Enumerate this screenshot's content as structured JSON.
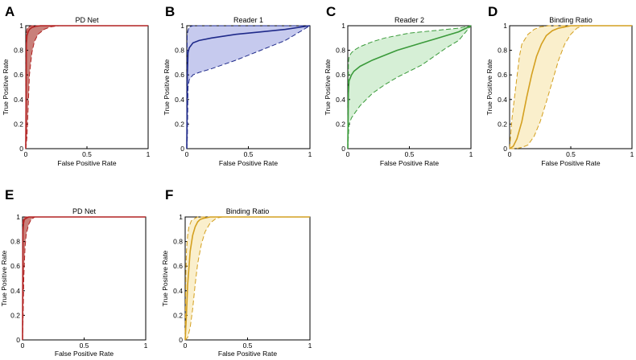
{
  "chart_data": [
    {
      "panel": "A",
      "title": "PD Net",
      "type": "line",
      "xlabel": "False Positive Rate",
      "ylabel": "True Positive Rate",
      "xlim": [
        0,
        1
      ],
      "ylim": [
        0,
        1
      ],
      "xticks": [
        "0",
        "0.5",
        "1"
      ],
      "yticks": [
        "0",
        "0.2",
        "0.4",
        "0.6",
        "0.8",
        "1"
      ],
      "color": "#b22222",
      "fill": "#c9807a",
      "series": [
        {
          "x": [
            0,
            0.005,
            0.01,
            0.02,
            0.03,
            0.05,
            0.08,
            0.12,
            0.2,
            1
          ],
          "y": [
            0,
            0.85,
            0.92,
            0.95,
            0.97,
            0.985,
            0.995,
            1,
            1,
            1
          ]
        },
        {
          "x": [
            0,
            0.003,
            0.01,
            0.02,
            0.05,
            0.1,
            1
          ],
          "y": [
            0,
            0.92,
            0.97,
            0.99,
            1,
            1,
            1
          ]
        },
        {
          "x": [
            0,
            0.01,
            0.02,
            0.03,
            0.05,
            0.07,
            0.1,
            0.15,
            0.2,
            0.27,
            1
          ],
          "y": [
            0,
            0.1,
            0.35,
            0.6,
            0.78,
            0.87,
            0.93,
            0.97,
            0.99,
            1,
            1
          ]
        }
      ]
    },
    {
      "panel": "B",
      "title": "Reader 1",
      "type": "line",
      "xlabel": "False Positive Rate",
      "ylabel": "True Positive Rate",
      "xlim": [
        0,
        1
      ],
      "ylim": [
        0,
        1
      ],
      "xticks": [
        "0",
        "0.5",
        "1"
      ],
      "yticks": [
        "0",
        "0.2",
        "0.4",
        "0.6",
        "0.8",
        "1"
      ],
      "color": "#1f2a8a",
      "fill": "#c6caee",
      "series": [
        {
          "x": [
            0,
            0.005,
            0.01,
            0.02,
            0.05,
            0.1,
            0.2,
            0.4,
            0.6,
            0.8,
            1
          ],
          "y": [
            0,
            0.6,
            0.78,
            0.82,
            0.86,
            0.88,
            0.9,
            0.93,
            0.95,
            0.97,
            1
          ]
        },
        {
          "x": [
            0,
            0.003,
            0.01,
            0.02,
            0.05,
            1
          ],
          "y": [
            0,
            0.93,
            0.96,
            0.99,
            1,
            1
          ]
        },
        {
          "x": [
            0,
            0.005,
            0.01,
            0.02,
            0.05,
            0.1,
            0.2,
            0.4,
            0.6,
            0.8,
            1
          ],
          "y": [
            0,
            0.1,
            0.5,
            0.56,
            0.6,
            0.62,
            0.65,
            0.72,
            0.8,
            0.88,
            1
          ]
        }
      ]
    },
    {
      "panel": "C",
      "title": "Reader 2",
      "type": "line",
      "xlabel": "False Positive Rate",
      "ylabel": "True Positive Rate",
      "xlim": [
        0,
        1
      ],
      "ylim": [
        0,
        1
      ],
      "xticks": [
        "0",
        "0.5",
        "1"
      ],
      "yticks": [
        "0",
        "0.2",
        "0.4",
        "0.6",
        "0.8",
        "1"
      ],
      "color": "#3a9a3a",
      "fill": "#d6efd6",
      "series": [
        {
          "x": [
            0,
            0.005,
            0.01,
            0.03,
            0.05,
            0.1,
            0.2,
            0.3,
            0.4,
            0.5,
            0.6,
            0.7,
            0.8,
            0.9,
            1
          ],
          "y": [
            0,
            0.45,
            0.55,
            0.6,
            0.63,
            0.67,
            0.72,
            0.76,
            0.8,
            0.83,
            0.86,
            0.89,
            0.92,
            0.95,
            1
          ]
        },
        {
          "x": [
            0,
            0.005,
            0.01,
            0.03,
            0.05,
            0.1,
            0.2,
            0.3,
            0.4,
            0.5,
            0.6,
            0.7,
            0.8,
            0.9,
            1
          ],
          "y": [
            0,
            0.7,
            0.75,
            0.78,
            0.8,
            0.83,
            0.87,
            0.9,
            0.92,
            0.94,
            0.95,
            0.96,
            0.97,
            0.98,
            1
          ]
        },
        {
          "x": [
            0,
            0.01,
            0.03,
            0.05,
            0.1,
            0.2,
            0.3,
            0.4,
            0.5,
            0.6,
            0.7,
            0.8,
            0.9,
            1
          ],
          "y": [
            0,
            0.2,
            0.25,
            0.28,
            0.35,
            0.45,
            0.52,
            0.58,
            0.63,
            0.68,
            0.75,
            0.82,
            0.88,
            1
          ]
        }
      ]
    },
    {
      "panel": "D",
      "title": "Binding Ratio",
      "type": "line",
      "xlabel": "False Positive Rate",
      "ylabel": "True Positive Rate",
      "xlim": [
        0,
        1
      ],
      "ylim": [
        0,
        1
      ],
      "xticks": [
        "0",
        "0.5",
        "1"
      ],
      "yticks": [
        "0",
        "0.2",
        "0.4",
        "0.6",
        "0.8",
        "1"
      ],
      "color": "#d4a020",
      "fill": "#faefcc",
      "series": [
        {
          "x": [
            0,
            0.03,
            0.06,
            0.1,
            0.14,
            0.18,
            0.22,
            0.26,
            0.3,
            0.35,
            0.4,
            0.45,
            0.5,
            1
          ],
          "y": [
            0,
            0.02,
            0.08,
            0.22,
            0.42,
            0.6,
            0.75,
            0.85,
            0.92,
            0.96,
            0.98,
            0.99,
            1,
            1
          ]
        },
        {
          "x": [
            0,
            0.02,
            0.05,
            0.08,
            0.1,
            0.15,
            0.2,
            0.25,
            0.32,
            1
          ],
          "y": [
            0,
            0.25,
            0.5,
            0.75,
            0.85,
            0.93,
            0.97,
            0.99,
            1,
            1
          ]
        },
        {
          "x": [
            0,
            0.05,
            0.1,
            0.15,
            0.2,
            0.25,
            0.3,
            0.35,
            0.4,
            0.45,
            0.5,
            0.55,
            0.6,
            1
          ],
          "y": [
            0,
            0.0,
            0.01,
            0.03,
            0.1,
            0.22,
            0.38,
            0.55,
            0.72,
            0.85,
            0.93,
            0.98,
            1,
            1
          ]
        }
      ]
    },
    {
      "panel": "E",
      "title": "PD Net",
      "type": "line",
      "xlabel": "False Positive Rate",
      "ylabel": "True Positive Rate",
      "xlim": [
        0,
        1
      ],
      "ylim": [
        0,
        1
      ],
      "xticks": [
        "0",
        "0.5",
        "1"
      ],
      "yticks": [
        "0",
        "0.2",
        "0.4",
        "0.6",
        "0.8",
        "1"
      ],
      "color": "#b22222",
      "fill": "#c9807a",
      "series": [
        {
          "x": [
            0,
            0.003,
            0.008,
            0.015,
            0.03,
            0.05,
            0.08,
            1
          ],
          "y": [
            0,
            0.88,
            0.95,
            0.98,
            0.99,
            1,
            1,
            1
          ]
        },
        {
          "x": [
            0,
            0.002,
            0.005,
            0.01,
            0.03,
            1
          ],
          "y": [
            0,
            0.95,
            0.98,
            0.995,
            1,
            1
          ]
        },
        {
          "x": [
            0,
            0.005,
            0.01,
            0.02,
            0.03,
            0.05,
            0.07,
            0.1,
            1
          ],
          "y": [
            0,
            0.2,
            0.5,
            0.75,
            0.86,
            0.94,
            0.98,
            1,
            1
          ]
        }
      ]
    },
    {
      "panel": "F",
      "title": "Binding Ratio",
      "type": "line",
      "xlabel": "False Positive Rate",
      "ylabel": "True Positive Rate",
      "xlim": [
        0,
        1
      ],
      "ylim": [
        0,
        1
      ],
      "xticks": [
        "0",
        "0.5",
        "1"
      ],
      "yticks": [
        "0",
        "0.2",
        "0.4",
        "0.6",
        "0.8",
        "1"
      ],
      "color": "#d4a020",
      "fill": "#faefcc",
      "series": [
        {
          "x": [
            0,
            0.01,
            0.02,
            0.04,
            0.06,
            0.08,
            0.1,
            0.12,
            0.15,
            0.2,
            1
          ],
          "y": [
            0,
            0.2,
            0.45,
            0.72,
            0.85,
            0.92,
            0.96,
            0.98,
            0.99,
            1,
            1
          ]
        },
        {
          "x": [
            0,
            0.005,
            0.01,
            0.02,
            0.03,
            0.05,
            0.08,
            0.1,
            1
          ],
          "y": [
            0,
            0.5,
            0.72,
            0.85,
            0.92,
            0.97,
            0.99,
            1,
            1
          ]
        },
        {
          "x": [
            0,
            0.02,
            0.04,
            0.06,
            0.08,
            0.1,
            0.13,
            0.16,
            0.2,
            0.25,
            0.3,
            1
          ],
          "y": [
            0,
            0.02,
            0.1,
            0.25,
            0.45,
            0.62,
            0.78,
            0.88,
            0.95,
            0.99,
            1,
            1
          ]
        }
      ]
    }
  ]
}
